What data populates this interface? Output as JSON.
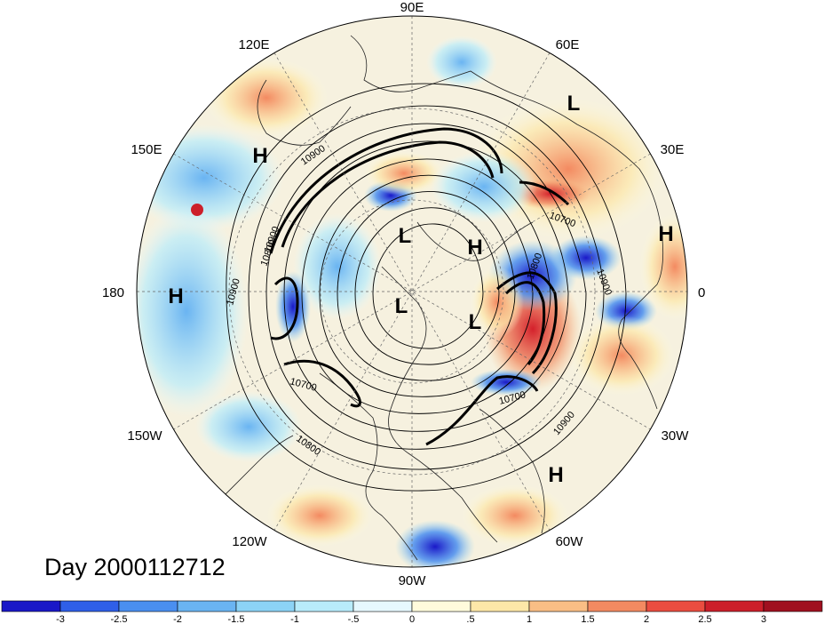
{
  "map": {
    "projection": "north-polar-stereographic",
    "longitude_labels": [
      "90E",
      "60E",
      "30E",
      "0",
      "30W",
      "60W",
      "90W",
      "120W",
      "150W",
      "180",
      "150E",
      "120E"
    ],
    "pressure_centers": [
      {
        "type": "H",
        "text": "H"
      },
      {
        "type": "L",
        "text": "L"
      },
      {
        "type": "L",
        "text": "L"
      },
      {
        "type": "H",
        "text": "H"
      },
      {
        "type": "H",
        "text": "H"
      },
      {
        "type": "H",
        "text": "H"
      },
      {
        "type": "L",
        "text": "L"
      },
      {
        "type": "L",
        "text": "L"
      },
      {
        "type": "H",
        "text": "H"
      }
    ],
    "contour_labels": [
      "10900",
      "10900",
      "10900",
      "10800",
      "10700",
      "10700",
      "10900",
      "10800",
      "10700",
      "10900",
      "10800"
    ]
  },
  "date_label": "Day 2000112712",
  "colorbar": {
    "tick_labels": [
      "-3",
      "-2.5",
      "-2",
      "-1.5",
      "-1",
      "-.5",
      "0",
      ".5",
      "1",
      "1.5",
      "2",
      "2.5",
      "3"
    ],
    "colors": [
      "#1a18c8",
      "#2f5fe8",
      "#4a8ff0",
      "#6ab4f2",
      "#8cd3f6",
      "#b8ecfb",
      "#e6f8fe",
      "#fffbdc",
      "#fde7a8",
      "#f9be85",
      "#f38a61",
      "#ea4d40",
      "#cc1f2a",
      "#a0101f"
    ]
  },
  "colors": {
    "ocean_neutral": "#f3f0e6",
    "coast": "#222222",
    "contour": "#000000"
  }
}
